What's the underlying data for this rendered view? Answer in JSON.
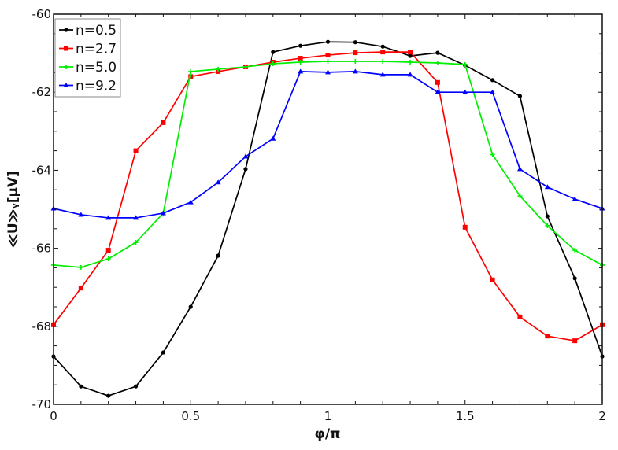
{
  "chart_data": {
    "type": "line",
    "title": "",
    "xlabel": "φ/π",
    "ylabel": "≪U≫ᵧ[μV]",
    "xlim": [
      0,
      2
    ],
    "ylim": [
      -70,
      -60
    ],
    "xticks": [
      "0",
      "0.5",
      "1",
      "1.5",
      "2"
    ],
    "yticks": [
      "-60",
      "-62",
      "-64",
      "-66",
      "-68",
      "-70"
    ],
    "grid": false,
    "legend_position": "top-left",
    "x": [
      0,
      0.1,
      0.2,
      0.3,
      0.4,
      0.5,
      0.6,
      0.7,
      0.8,
      0.9,
      1.0,
      1.1,
      1.2,
      1.3,
      1.4,
      1.5,
      1.6,
      1.7,
      1.8,
      1.9,
      2.0
    ],
    "series": [
      {
        "name": "n=0.5",
        "color": "#000000",
        "marker": "circle",
        "values": [
          -68.77,
          -69.54,
          -69.78,
          -69.54,
          -68.67,
          -67.5,
          -66.19,
          -63.97,
          -60.97,
          -60.81,
          -60.71,
          -60.72,
          -60.83,
          -61.07,
          -60.99,
          -61.31,
          -61.69,
          -62.1,
          -65.18,
          -66.77,
          -68.77
        ]
      },
      {
        "name": "n=2.7",
        "color": "#ff0000",
        "marker": "square",
        "values": [
          -67.96,
          -67.02,
          -66.05,
          -63.5,
          -62.78,
          -61.6,
          -61.47,
          -61.35,
          -61.23,
          -61.13,
          -61.05,
          -60.99,
          -60.97,
          -60.97,
          -61.75,
          -65.46,
          -66.81,
          -67.76,
          -68.25,
          -68.37,
          -67.96
        ]
      },
      {
        "name": "n=5.0",
        "color": "#00ee00",
        "marker": "plus",
        "values": [
          -66.43,
          -66.49,
          -66.27,
          -65.85,
          -65.1,
          -61.47,
          -61.41,
          -61.35,
          -61.27,
          -61.23,
          -61.21,
          -61.21,
          -61.21,
          -61.23,
          -61.25,
          -61.29,
          -63.6,
          -64.66,
          -65.42,
          -66.05,
          -66.43
        ]
      },
      {
        "name": "n=9.2",
        "color": "#0000ff",
        "marker": "triangle",
        "values": [
          -64.98,
          -65.14,
          -65.22,
          -65.22,
          -65.1,
          -64.82,
          -64.31,
          -63.65,
          -63.19,
          -61.47,
          -61.49,
          -61.47,
          -61.55,
          -61.55,
          -62.0,
          -62.0,
          -62.0,
          -63.97,
          -64.43,
          -64.74,
          -64.98
        ]
      }
    ]
  }
}
